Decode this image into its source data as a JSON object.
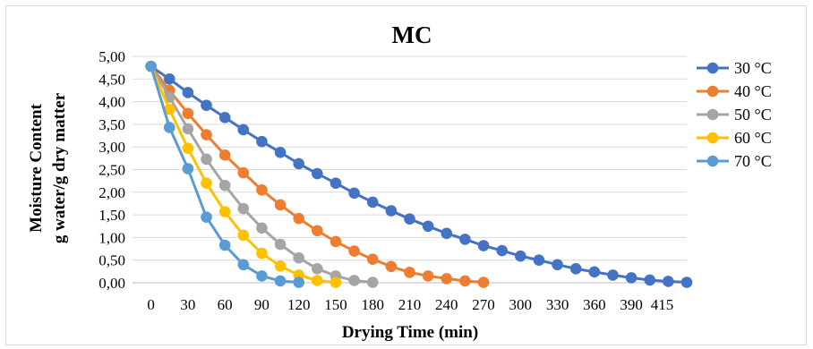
{
  "chart_data": {
    "type": "line",
    "title": "MC",
    "xlabel": "Drying Time (min)",
    "ylabel": [
      "Moisture Content",
      "g water/g dry matter"
    ],
    "xlim": [
      -15,
      435
    ],
    "ylim": [
      0,
      5
    ],
    "x_tick_labels": [
      "0",
      "30",
      "60",
      "90",
      "120",
      "150",
      "180",
      "210",
      "240",
      "270",
      "300",
      "330",
      "360",
      "390",
      "415"
    ],
    "y_tick_labels": [
      "0,00",
      "0,50",
      "1,00",
      "1,50",
      "2,00",
      "2,50",
      "3,00",
      "3,50",
      "4,00",
      "4,50",
      "5,00"
    ],
    "grid": "horizontal",
    "legend": "right",
    "series": [
      {
        "name": "30 °C",
        "color": "#4472C4",
        "x": [
          0,
          15,
          30,
          45,
          60,
          75,
          90,
          105,
          120,
          135,
          150,
          165,
          180,
          195,
          210,
          225,
          240,
          255,
          270,
          285,
          300,
          315,
          330,
          345,
          360,
          375,
          390,
          405,
          420,
          435
        ],
        "y": [
          4.78,
          4.5,
          4.2,
          3.92,
          3.65,
          3.38,
          3.12,
          2.88,
          2.63,
          2.41,
          2.2,
          1.98,
          1.78,
          1.59,
          1.41,
          1.25,
          1.09,
          0.96,
          0.82,
          0.71,
          0.59,
          0.5,
          0.4,
          0.31,
          0.24,
          0.17,
          0.11,
          0.06,
          0.03,
          0.01
        ]
      },
      {
        "name": "40 °C",
        "color": "#ED7D31",
        "x": [
          0,
          15,
          30,
          45,
          60,
          75,
          90,
          105,
          120,
          135,
          150,
          165,
          180,
          195,
          210,
          225,
          240,
          255,
          270
        ],
        "y": [
          4.78,
          4.25,
          3.74,
          3.27,
          2.82,
          2.43,
          2.05,
          1.72,
          1.42,
          1.15,
          0.91,
          0.7,
          0.52,
          0.36,
          0.23,
          0.15,
          0.09,
          0.04,
          0.01
        ]
      },
      {
        "name": "50 °C",
        "color": "#A5A5A5",
        "x": [
          0,
          15,
          30,
          45,
          60,
          75,
          90,
          105,
          120,
          135,
          150,
          165,
          180
        ],
        "y": [
          4.78,
          4.1,
          3.4,
          2.73,
          2.15,
          1.64,
          1.21,
          0.85,
          0.55,
          0.31,
          0.15,
          0.05,
          0.01
        ]
      },
      {
        "name": "60 °C",
        "color": "#FFC000",
        "x": [
          0,
          15,
          30,
          45,
          60,
          75,
          90,
          105,
          120,
          135,
          150
        ],
        "y": [
          4.78,
          3.83,
          2.97,
          2.2,
          1.57,
          1.05,
          0.65,
          0.37,
          0.17,
          0.05,
          0.01
        ]
      },
      {
        "name": "70 °C",
        "color": "#5B9BD5",
        "x": [
          0,
          15,
          30,
          45,
          60,
          75,
          90,
          105,
          120
        ],
        "y": [
          4.78,
          3.43,
          2.52,
          1.45,
          0.83,
          0.4,
          0.15,
          0.04,
          0.01
        ]
      }
    ]
  }
}
